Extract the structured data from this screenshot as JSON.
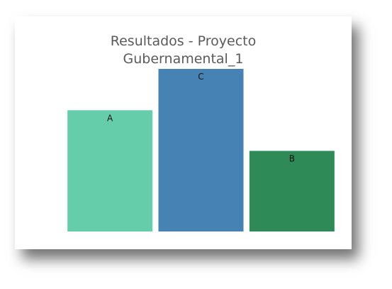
{
  "chart_data": {
    "type": "bar",
    "title": "Resultados - Proyecto\nGubernamental_1",
    "categories": [
      "A",
      "C",
      "B"
    ],
    "values": [
      170,
      228,
      113
    ],
    "colors": [
      "#66cdaa",
      "#4682b4",
      "#2e8b57"
    ],
    "ylim": [
      0,
      228
    ],
    "grid": false,
    "legend": "none"
  }
}
